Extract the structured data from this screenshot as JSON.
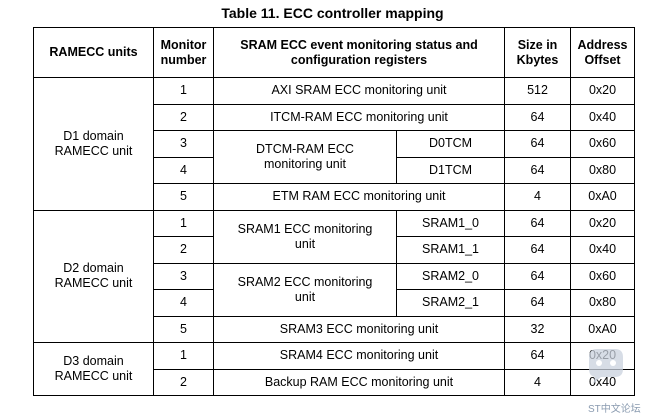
{
  "title": "Table 11. ECC controller mapping",
  "headers": {
    "ramecc_units": "RAMECC units",
    "monitor_number": "Monitor number",
    "event_monitoring": "SRAM ECC event monitoring status and configuration registers",
    "size": "Size in Kbytes",
    "address_offset": "Address Offset"
  },
  "groups": {
    "d1": "D1 domain RAMECC unit",
    "d2": "D2 domain RAMECC unit",
    "d3": "D3 domain RAMECC unit"
  },
  "rows": [
    {
      "num": "1",
      "unit": "AXI SRAM ECC monitoring unit",
      "size": "512",
      "offset": "0x20"
    },
    {
      "num": "2",
      "unit": "ITCM-RAM ECC monitoring unit",
      "size": "64",
      "offset": "0x40"
    },
    {
      "num": "3",
      "unit": "DTCM-RAM ECC monitoring unit",
      "sub": "D0TCM",
      "size": "64",
      "offset": "0x60"
    },
    {
      "num": "4",
      "sub": "D1TCM",
      "size": "64",
      "offset": "0x80"
    },
    {
      "num": "5",
      "unit": "ETM RAM ECC monitoring unit",
      "size": "4",
      "offset": "0xA0"
    },
    {
      "num": "1",
      "unit": "SRAM1 ECC monitoring unit",
      "sub": "SRAM1_0",
      "size": "64",
      "offset": "0x20"
    },
    {
      "num": "2",
      "sub": "SRAM1_1",
      "size": "64",
      "offset": "0x40"
    },
    {
      "num": "3",
      "unit": "SRAM2 ECC monitoring unit",
      "sub": "SRAM2_0",
      "size": "64",
      "offset": "0x60"
    },
    {
      "num": "4",
      "sub": "SRAM2_1",
      "size": "64",
      "offset": "0x80"
    },
    {
      "num": "5",
      "unit": "SRAM3 ECC monitoring unit",
      "size": "32",
      "offset": "0xA0"
    },
    {
      "num": "1",
      "unit": "SRAM4 ECC monitoring unit",
      "size": "64",
      "offset": "0x20"
    },
    {
      "num": "2",
      "unit": "Backup RAM ECC monitoring unit",
      "size": "4",
      "offset": "0x40"
    }
  ],
  "watermark": {
    "text": "ST中文论坛",
    "icon": "forum-chat-icon"
  }
}
